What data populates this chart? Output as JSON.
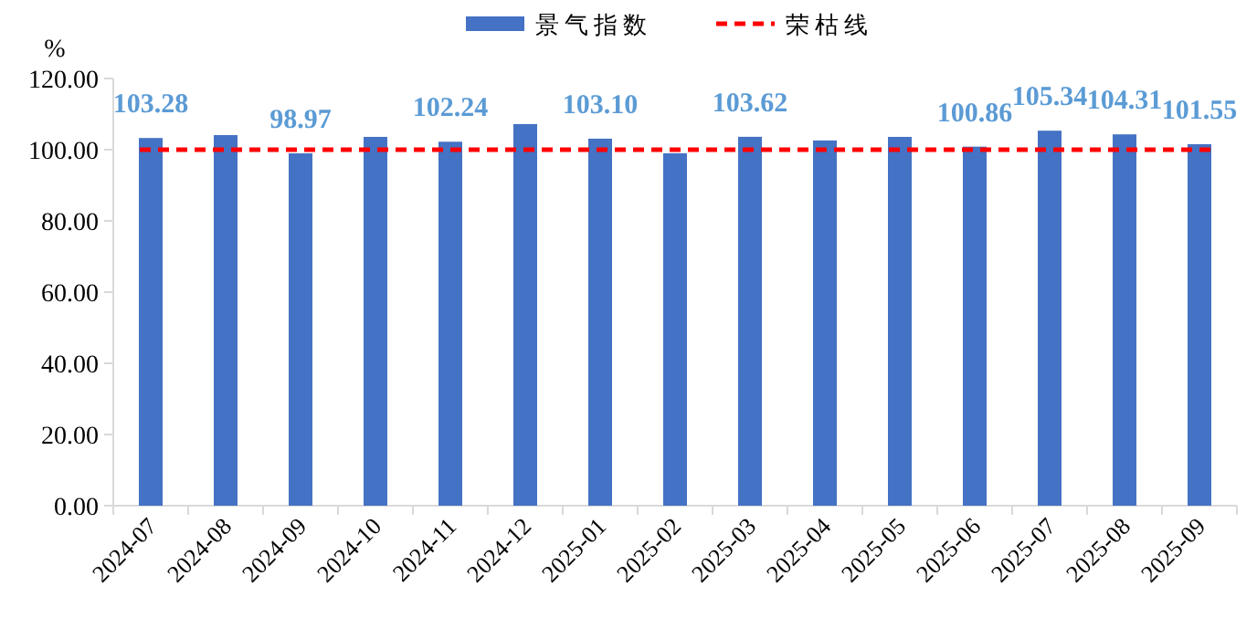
{
  "chart_data": {
    "type": "bar",
    "ylabel": "%",
    "categories": [
      "2024-07",
      "2024-08",
      "2024-09",
      "2024-10",
      "2024-11",
      "2024-12",
      "2025-01",
      "2025-02",
      "2025-03",
      "2025-04",
      "2025-05",
      "2025-06",
      "2025-07",
      "2025-08",
      "2025-09"
    ],
    "series": [
      {
        "name": "景气指数",
        "color": "#4472c4",
        "values": [
          103.28,
          104.1,
          98.97,
          103.6,
          102.24,
          107.2,
          103.1,
          99.0,
          103.62,
          102.6,
          103.6,
          100.86,
          105.34,
          104.31,
          101.55
        ],
        "value_labels": [
          "103.28",
          null,
          "98.97",
          null,
          "102.24",
          null,
          "103.10",
          null,
          "103.62",
          null,
          null,
          "100.86",
          "105.34",
          "104.31",
          "101.55"
        ]
      }
    ],
    "ylim": [
      0,
      120
    ],
    "yticks": [
      {
        "value": 0,
        "label": "0.00"
      },
      {
        "value": 20,
        "label": "20.00"
      },
      {
        "value": 40,
        "label": "40.00"
      },
      {
        "value": 60,
        "label": "60.00"
      },
      {
        "value": 80,
        "label": "80.00"
      },
      {
        "value": 100,
        "label": "100.00"
      },
      {
        "value": 120,
        "label": "120.00"
      }
    ],
    "ref_lines": [
      {
        "axis": "y",
        "value": 100,
        "label": "荣枯线",
        "color": "#ff0000",
        "line_style": "dashed"
      }
    ],
    "legend": "top",
    "grid": false
  }
}
